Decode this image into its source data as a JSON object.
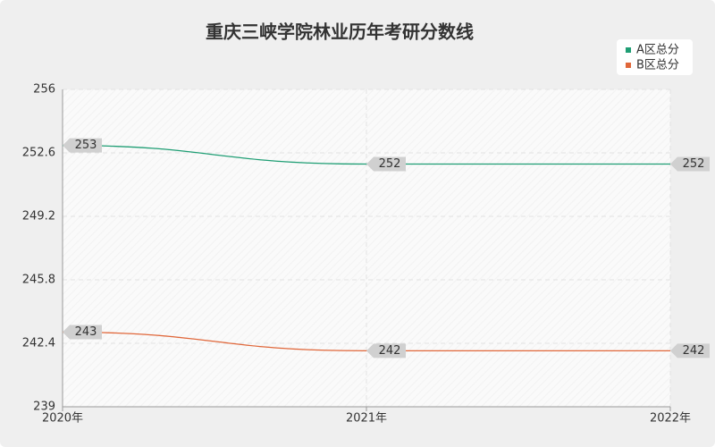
{
  "chart_data": {
    "type": "line",
    "title": "重庆三峡学院林业历年考研分数线",
    "categories": [
      "2020年",
      "2021年",
      "2022年"
    ],
    "series": [
      {
        "name": "A区总分",
        "color": "#1f9e74",
        "values": [
          253,
          252,
          252
        ]
      },
      {
        "name": "B区总分",
        "color": "#e0673a",
        "values": [
          243,
          242,
          242
        ]
      }
    ],
    "ylim": [
      239,
      256
    ],
    "yticks": [
      239,
      242.4,
      245.8,
      249.2,
      252.6,
      256
    ],
    "grid": true,
    "legend": "top-right"
  }
}
